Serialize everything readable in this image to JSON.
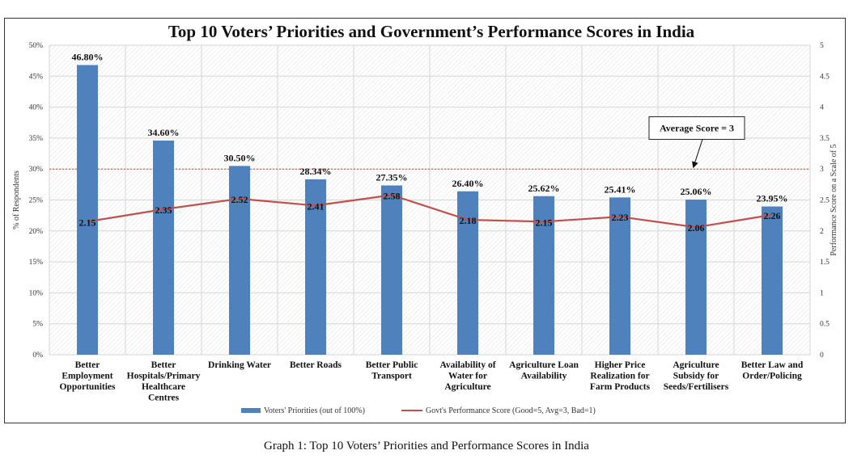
{
  "chart_data": {
    "type": "bar",
    "title": "Top 10 Voters’ Priorities and Government’s Performance Scores in India",
    "ylabel": "% of Respondents",
    "y2label": "Performance Score on a Scale of 5",
    "xlabel": "",
    "ylim": [
      0,
      50
    ],
    "y2lim": [
      0,
      5
    ],
    "grid": true,
    "legend_position": "bottom",
    "y_ticks": [
      "0%",
      "5%",
      "10%",
      "15%",
      "20%",
      "25%",
      "30%",
      "35%",
      "40%",
      "45%",
      "50%"
    ],
    "y2_ticks": [
      "0",
      "0.5",
      "1",
      "1.5",
      "2",
      "2.5",
      "3",
      "3.5",
      "4",
      "4.5",
      "5"
    ],
    "categories": [
      [
        "Better",
        "Employment",
        "Opportunities"
      ],
      [
        "Better",
        "Hospitals/Primary",
        "Healthcare",
        "Centres"
      ],
      [
        "Drinking Water"
      ],
      [
        "Better Roads"
      ],
      [
        "Better Public",
        "Transport"
      ],
      [
        "Availability of",
        "Water for",
        "Agriculture"
      ],
      [
        "Agriculture Loan",
        "Availability"
      ],
      [
        "Higher Price",
        "Realization for",
        "Farm Products"
      ],
      [
        "Agriculture",
        "Subsidy for",
        "Seeds/Fertilisers"
      ],
      [
        "Better Law and",
        "Order/Policing"
      ]
    ],
    "series": [
      {
        "name": "Voters' Priorities (out of 100%)",
        "type": "bar",
        "axis": "left",
        "color": "#4f81bd",
        "values": [
          46.8,
          34.6,
          30.5,
          28.34,
          27.35,
          26.4,
          25.62,
          25.41,
          25.06,
          23.95
        ],
        "labels": [
          "46.80%",
          "34.60%",
          "30.50%",
          "28.34%",
          "27.35%",
          "26.40%",
          "25.62%",
          "25.41%",
          "25.06%",
          "23.95%"
        ]
      },
      {
        "name": "Govt's Performance Score (Good=5, Avg=3, Bad=1)",
        "type": "line",
        "axis": "right",
        "color": "#c0504d",
        "values": [
          2.15,
          2.35,
          2.52,
          2.41,
          2.58,
          2.18,
          2.15,
          2.23,
          2.06,
          2.26
        ],
        "labels": [
          "2.15",
          "2.35",
          "2.52",
          "2.41",
          "2.58",
          "2.18",
          "2.15",
          "2.23",
          "2.06",
          "2.26"
        ]
      }
    ],
    "reference_line": {
      "axis": "right",
      "value": 3,
      "color": "#e0403a",
      "style": "dashed"
    },
    "annotation": {
      "text": "Average Score = 3",
      "points_to_value": 3,
      "category_index": 8.5
    }
  },
  "caption": "Graph 1: Top 10 Voters’ Priorities and Performance Scores in India"
}
